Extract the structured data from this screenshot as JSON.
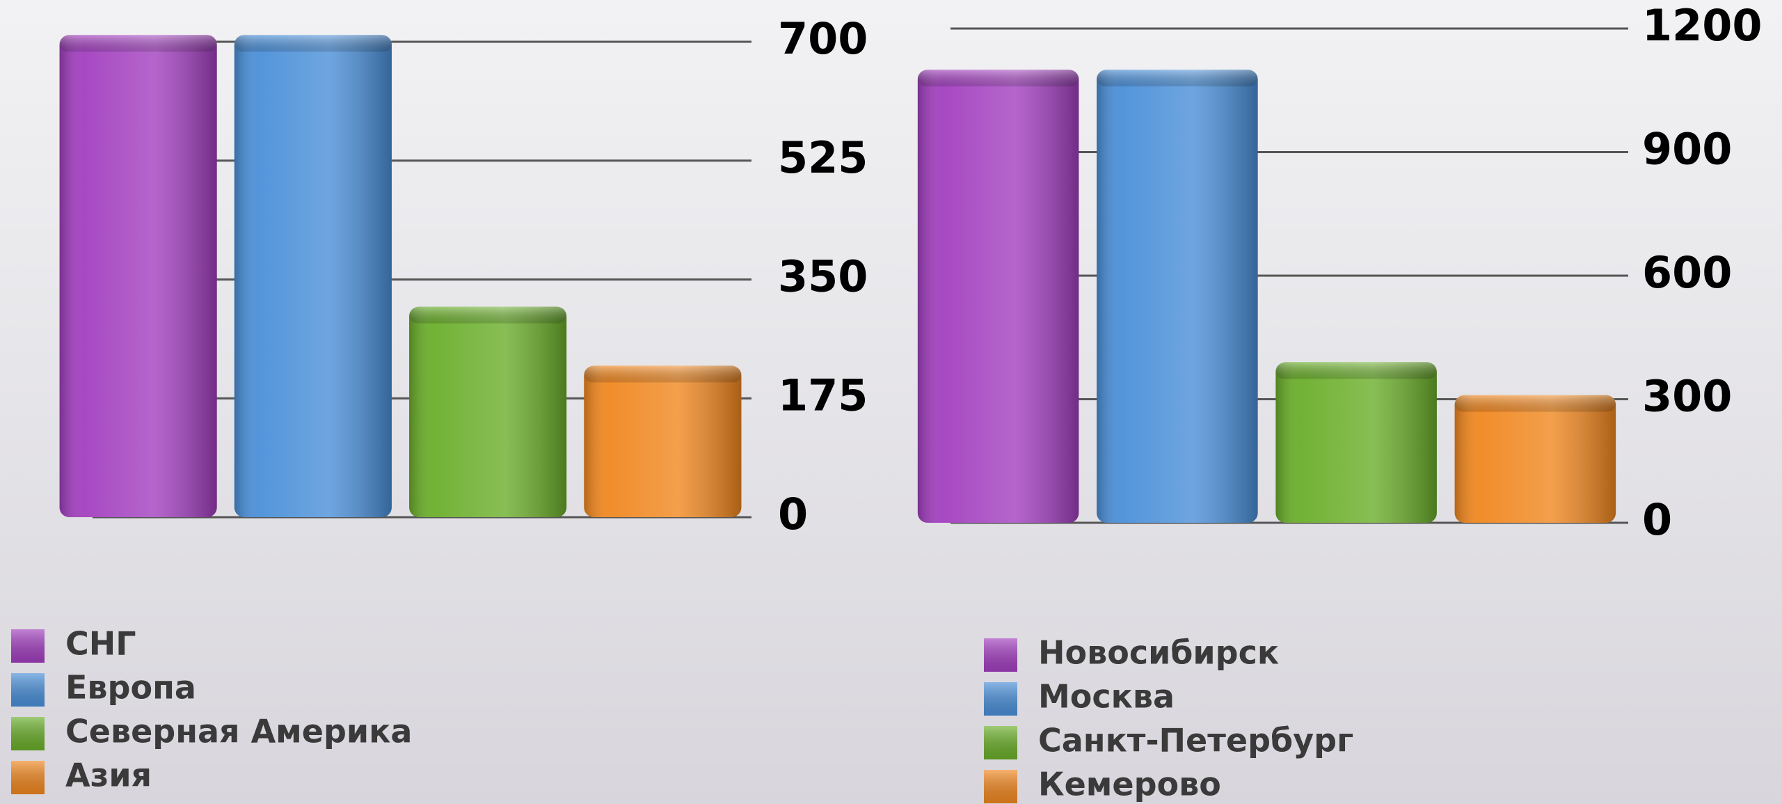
{
  "chart_data": [
    {
      "type": "bar",
      "categories": [
        "СНГ",
        "Европа",
        "Северная Америка",
        "Азия"
      ],
      "values": [
        710,
        710,
        310,
        223
      ],
      "colors": [
        "#a23fbf",
        "#4a8fd8",
        "#6aae2a",
        "#f0871f"
      ],
      "ylim": [
        0,
        700
      ],
      "yticks": [
        0,
        175,
        350,
        525,
        700
      ],
      "grid": true
    },
    {
      "type": "bar",
      "categories": [
        "Новосибирск",
        "Москва",
        "Санкт-Петербург",
        "Кемерово"
      ],
      "values": [
        1100,
        1100,
        390,
        310
      ],
      "colors": [
        "#a23fbf",
        "#4a8fd8",
        "#6aae2a",
        "#f0871f"
      ],
      "ylim": [
        0,
        1200
      ],
      "yticks": [
        0,
        300,
        600,
        900,
        1200
      ],
      "grid": true
    }
  ]
}
